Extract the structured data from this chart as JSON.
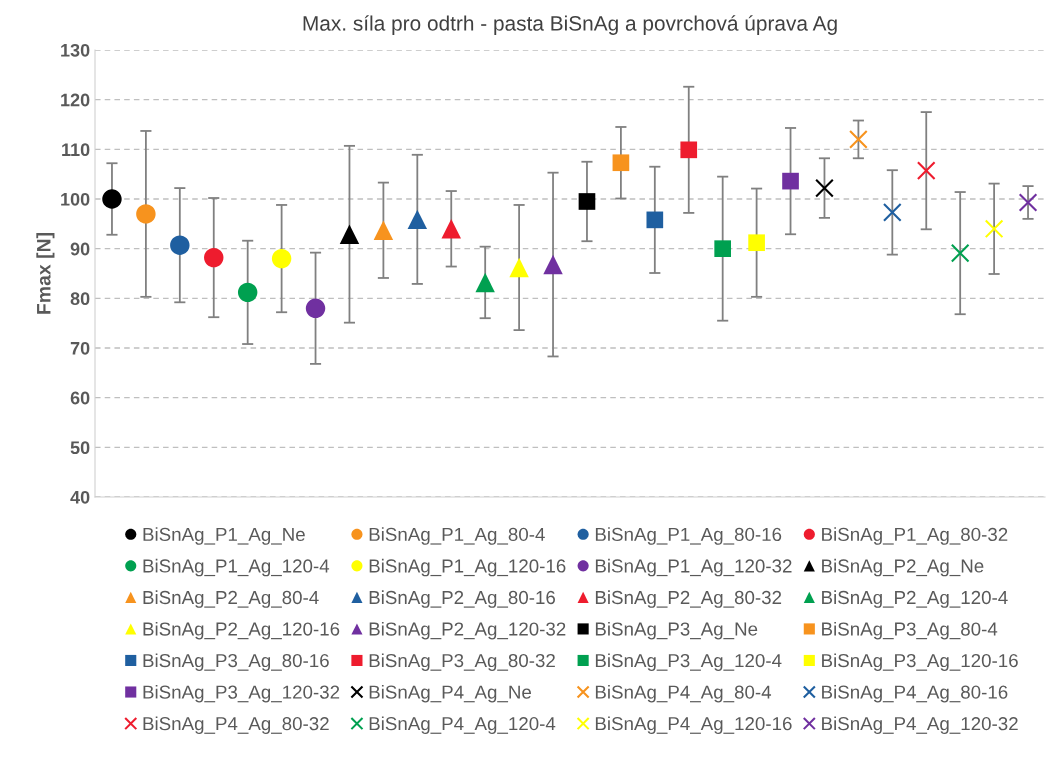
{
  "chart_data": {
    "type": "scatter",
    "title": "Max. síla pro odtrh - pasta BiSnAg a povrchová úprava Ag",
    "ylabel": "Fmax [N]",
    "categories": [
      null,
      null,
      null,
      null,
      null,
      null,
      null,
      null,
      null,
      null,
      null,
      null,
      null,
      null,
      null,
      null,
      null,
      null,
      null,
      null,
      null,
      null,
      null,
      null,
      null,
      null,
      null,
      null
    ],
    "ylim": [
      40,
      130
    ],
    "yticks": [
      40,
      50,
      60,
      70,
      80,
      90,
      100,
      110,
      120,
      130
    ],
    "grid": "y",
    "legend": "bottom",
    "series": [
      {
        "name": "BiSnAg_P1_Ag_Ne",
        "color": "#000000",
        "marker": "circle",
        "values": [
          100.0,
          null,
          null,
          null,
          null,
          null,
          null,
          null,
          null,
          null,
          null,
          null,
          null,
          null,
          null,
          null,
          null,
          null,
          null,
          null,
          null,
          null,
          null,
          null,
          null,
          null,
          null,
          null
        ],
        "errors": [
          7.2,
          null,
          null,
          null,
          null,
          null,
          null,
          null,
          null,
          null,
          null,
          null,
          null,
          null,
          null,
          null,
          null,
          null,
          null,
          null,
          null,
          null,
          null,
          null,
          null,
          null,
          null,
          null
        ]
      },
      {
        "name": "BiSnAg_P1_Ag_80-4",
        "color": "#f7931e",
        "marker": "circle",
        "values": [
          null,
          97.0,
          null,
          null,
          null,
          null,
          null,
          null,
          null,
          null,
          null,
          null,
          null,
          null,
          null,
          null,
          null,
          null,
          null,
          null,
          null,
          null,
          null,
          null,
          null,
          null,
          null,
          null
        ],
        "errors": [
          null,
          16.7,
          null,
          null,
          null,
          null,
          null,
          null,
          null,
          null,
          null,
          null,
          null,
          null,
          null,
          null,
          null,
          null,
          null,
          null,
          null,
          null,
          null,
          null,
          null,
          null,
          null,
          null
        ]
      },
      {
        "name": "BiSnAg_P1_Ag_80-16",
        "color": "#1f5fa0",
        "marker": "circle",
        "values": [
          null,
          null,
          90.7,
          null,
          null,
          null,
          null,
          null,
          null,
          null,
          null,
          null,
          null,
          null,
          null,
          null,
          null,
          null,
          null,
          null,
          null,
          null,
          null,
          null,
          null,
          null,
          null,
          null
        ],
        "errors": [
          null,
          null,
          11.5,
          null,
          null,
          null,
          null,
          null,
          null,
          null,
          null,
          null,
          null,
          null,
          null,
          null,
          null,
          null,
          null,
          null,
          null,
          null,
          null,
          null,
          null,
          null,
          null,
          null
        ]
      },
      {
        "name": "BiSnAg_P1_Ag_80-32",
        "color": "#ee1c2e",
        "marker": "circle",
        "values": [
          null,
          null,
          null,
          88.2,
          null,
          null,
          null,
          null,
          null,
          null,
          null,
          null,
          null,
          null,
          null,
          null,
          null,
          null,
          null,
          null,
          null,
          null,
          null,
          null,
          null,
          null,
          null,
          null
        ],
        "errors": [
          null,
          null,
          null,
          12.0,
          null,
          null,
          null,
          null,
          null,
          null,
          null,
          null,
          null,
          null,
          null,
          null,
          null,
          null,
          null,
          null,
          null,
          null,
          null,
          null,
          null,
          null,
          null,
          null
        ]
      },
      {
        "name": "BiSnAg_P1_Ag_120-4",
        "color": "#00a050",
        "marker": "circle",
        "values": [
          null,
          null,
          null,
          null,
          81.2,
          null,
          null,
          null,
          null,
          null,
          null,
          null,
          null,
          null,
          null,
          null,
          null,
          null,
          null,
          null,
          null,
          null,
          null,
          null,
          null,
          null,
          null,
          null
        ],
        "errors": [
          null,
          null,
          null,
          null,
          10.4,
          null,
          null,
          null,
          null,
          null,
          null,
          null,
          null,
          null,
          null,
          null,
          null,
          null,
          null,
          null,
          null,
          null,
          null,
          null,
          null,
          null,
          null,
          null
        ]
      },
      {
        "name": "BiSnAg_P1_Ag_120-16",
        "color": "#ffff00",
        "marker": "circle",
        "values": [
          null,
          null,
          null,
          null,
          null,
          88.0,
          null,
          null,
          null,
          null,
          null,
          null,
          null,
          null,
          null,
          null,
          null,
          null,
          null,
          null,
          null,
          null,
          null,
          null,
          null,
          null,
          null,
          null
        ],
        "errors": [
          null,
          null,
          null,
          null,
          null,
          10.8,
          null,
          null,
          null,
          null,
          null,
          null,
          null,
          null,
          null,
          null,
          null,
          null,
          null,
          null,
          null,
          null,
          null,
          null,
          null,
          null,
          null,
          null
        ]
      },
      {
        "name": "BiSnAg_P1_Ag_120-32",
        "color": "#7030a0",
        "marker": "circle",
        "values": [
          null,
          null,
          null,
          null,
          null,
          null,
          78.0,
          null,
          null,
          null,
          null,
          null,
          null,
          null,
          null,
          null,
          null,
          null,
          null,
          null,
          null,
          null,
          null,
          null,
          null,
          null,
          null,
          null
        ],
        "errors": [
          null,
          null,
          null,
          null,
          null,
          null,
          11.2,
          null,
          null,
          null,
          null,
          null,
          null,
          null,
          null,
          null,
          null,
          null,
          null,
          null,
          null,
          null,
          null,
          null,
          null,
          null,
          null,
          null
        ]
      },
      {
        "name": "BiSnAg_P2_Ag_Ne",
        "color": "#000000",
        "marker": "triangle",
        "values": [
          null,
          null,
          null,
          null,
          null,
          null,
          null,
          92.9,
          null,
          null,
          null,
          null,
          null,
          null,
          null,
          null,
          null,
          null,
          null,
          null,
          null,
          null,
          null,
          null,
          null,
          null,
          null,
          null
        ],
        "errors": [
          null,
          null,
          null,
          null,
          null,
          null,
          null,
          17.8,
          null,
          null,
          null,
          null,
          null,
          null,
          null,
          null,
          null,
          null,
          null,
          null,
          null,
          null,
          null,
          null,
          null,
          null,
          null,
          null
        ]
      },
      {
        "name": "BiSnAg_P2_Ag_80-4",
        "color": "#f7931e",
        "marker": "triangle",
        "values": [
          null,
          null,
          null,
          null,
          null,
          null,
          null,
          null,
          93.7,
          null,
          null,
          null,
          null,
          null,
          null,
          null,
          null,
          null,
          null,
          null,
          null,
          null,
          null,
          null,
          null,
          null,
          null,
          null
        ],
        "errors": [
          null,
          null,
          null,
          null,
          null,
          null,
          null,
          null,
          9.6,
          null,
          null,
          null,
          null,
          null,
          null,
          null,
          null,
          null,
          null,
          null,
          null,
          null,
          null,
          null,
          null,
          null,
          null,
          null
        ]
      },
      {
        "name": "BiSnAg_P2_Ag_80-16",
        "color": "#1f5fa0",
        "marker": "triangle",
        "values": [
          null,
          null,
          null,
          null,
          null,
          null,
          null,
          null,
          null,
          95.9,
          null,
          null,
          null,
          null,
          null,
          null,
          null,
          null,
          null,
          null,
          null,
          null,
          null,
          null,
          null,
          null,
          null,
          null
        ],
        "errors": [
          null,
          null,
          null,
          null,
          null,
          null,
          null,
          null,
          null,
          13.0,
          null,
          null,
          null,
          null,
          null,
          null,
          null,
          null,
          null,
          null,
          null,
          null,
          null,
          null,
          null,
          null,
          null,
          null
        ]
      },
      {
        "name": "BiSnAg_P2_Ag_80-32",
        "color": "#ee1c2e",
        "marker": "triangle",
        "values": [
          null,
          null,
          null,
          null,
          null,
          null,
          null,
          null,
          null,
          null,
          94.0,
          null,
          null,
          null,
          null,
          null,
          null,
          null,
          null,
          null,
          null,
          null,
          null,
          null,
          null,
          null,
          null,
          null
        ],
        "errors": [
          null,
          null,
          null,
          null,
          null,
          null,
          null,
          null,
          null,
          null,
          7.6,
          null,
          null,
          null,
          null,
          null,
          null,
          null,
          null,
          null,
          null,
          null,
          null,
          null,
          null,
          null,
          null,
          null
        ]
      },
      {
        "name": "BiSnAg_P2_Ag_120-4",
        "color": "#00a050",
        "marker": "triangle",
        "values": [
          null,
          null,
          null,
          null,
          null,
          null,
          null,
          null,
          null,
          null,
          null,
          83.2,
          null,
          null,
          null,
          null,
          null,
          null,
          null,
          null,
          null,
          null,
          null,
          null,
          null,
          null,
          null,
          null
        ],
        "errors": [
          null,
          null,
          null,
          null,
          null,
          null,
          null,
          null,
          null,
          null,
          null,
          7.2,
          null,
          null,
          null,
          null,
          null,
          null,
          null,
          null,
          null,
          null,
          null,
          null,
          null,
          null,
          null,
          null
        ]
      },
      {
        "name": "BiSnAg_P2_Ag_120-16",
        "color": "#ffff00",
        "marker": "triangle",
        "values": [
          null,
          null,
          null,
          null,
          null,
          null,
          null,
          null,
          null,
          null,
          null,
          null,
          86.2,
          null,
          null,
          null,
          null,
          null,
          null,
          null,
          null,
          null,
          null,
          null,
          null,
          null,
          null,
          null
        ],
        "errors": [
          null,
          null,
          null,
          null,
          null,
          null,
          null,
          null,
          null,
          null,
          null,
          null,
          12.6,
          null,
          null,
          null,
          null,
          null,
          null,
          null,
          null,
          null,
          null,
          null,
          null,
          null,
          null,
          null
        ]
      },
      {
        "name": "BiSnAg_P2_Ag_120-32",
        "color": "#7030a0",
        "marker": "triangle",
        "values": [
          null,
          null,
          null,
          null,
          null,
          null,
          null,
          null,
          null,
          null,
          null,
          null,
          null,
          86.8,
          null,
          null,
          null,
          null,
          null,
          null,
          null,
          null,
          null,
          null,
          null,
          null,
          null,
          null
        ],
        "errors": [
          null,
          null,
          null,
          null,
          null,
          null,
          null,
          null,
          null,
          null,
          null,
          null,
          null,
          18.5,
          null,
          null,
          null,
          null,
          null,
          null,
          null,
          null,
          null,
          null,
          null,
          null,
          null,
          null
        ]
      },
      {
        "name": "BiSnAg_P3_Ag_Ne",
        "color": "#000000",
        "marker": "square",
        "values": [
          null,
          null,
          null,
          null,
          null,
          null,
          null,
          null,
          null,
          null,
          null,
          null,
          null,
          null,
          99.5,
          null,
          null,
          null,
          null,
          null,
          null,
          null,
          null,
          null,
          null,
          null,
          null,
          null
        ],
        "errors": [
          null,
          null,
          null,
          null,
          null,
          null,
          null,
          null,
          null,
          null,
          null,
          null,
          null,
          null,
          8.0,
          null,
          null,
          null,
          null,
          null,
          null,
          null,
          null,
          null,
          null,
          null,
          null,
          null
        ]
      },
      {
        "name": "BiSnAg_P3_Ag_80-4",
        "color": "#f7931e",
        "marker": "square",
        "values": [
          null,
          null,
          null,
          null,
          null,
          null,
          null,
          null,
          null,
          null,
          null,
          null,
          null,
          null,
          null,
          107.3,
          null,
          null,
          null,
          null,
          null,
          null,
          null,
          null,
          null,
          null,
          null,
          null
        ],
        "errors": [
          null,
          null,
          null,
          null,
          null,
          null,
          null,
          null,
          null,
          null,
          null,
          null,
          null,
          null,
          null,
          7.2,
          null,
          null,
          null,
          null,
          null,
          null,
          null,
          null,
          null,
          null,
          null,
          null
        ]
      },
      {
        "name": "BiSnAg_P3_Ag_80-16",
        "color": "#1f5fa0",
        "marker": "square",
        "values": [
          null,
          null,
          null,
          null,
          null,
          null,
          null,
          null,
          null,
          null,
          null,
          null,
          null,
          null,
          null,
          null,
          95.8,
          null,
          null,
          null,
          null,
          null,
          null,
          null,
          null,
          null,
          null,
          null
        ],
        "errors": [
          null,
          null,
          null,
          null,
          null,
          null,
          null,
          null,
          null,
          null,
          null,
          null,
          null,
          null,
          null,
          null,
          10.7,
          null,
          null,
          null,
          null,
          null,
          null,
          null,
          null,
          null,
          null,
          null
        ]
      },
      {
        "name": "BiSnAg_P3_Ag_80-32",
        "color": "#ee1c2e",
        "marker": "square",
        "values": [
          null,
          null,
          null,
          null,
          null,
          null,
          null,
          null,
          null,
          null,
          null,
          null,
          null,
          null,
          null,
          null,
          null,
          109.9,
          null,
          null,
          null,
          null,
          null,
          null,
          null,
          null,
          null,
          null
        ],
        "errors": [
          null,
          null,
          null,
          null,
          null,
          null,
          null,
          null,
          null,
          null,
          null,
          null,
          null,
          null,
          null,
          null,
          null,
          12.7,
          null,
          null,
          null,
          null,
          null,
          null,
          null,
          null,
          null,
          null
        ]
      },
      {
        "name": "BiSnAg_P3_Ag_120-4",
        "color": "#00a050",
        "marker": "square",
        "values": [
          null,
          null,
          null,
          null,
          null,
          null,
          null,
          null,
          null,
          null,
          null,
          null,
          null,
          null,
          null,
          null,
          null,
          null,
          90.0,
          null,
          null,
          null,
          null,
          null,
          null,
          null,
          null,
          null
        ],
        "errors": [
          null,
          null,
          null,
          null,
          null,
          null,
          null,
          null,
          null,
          null,
          null,
          null,
          null,
          null,
          null,
          null,
          null,
          null,
          14.5,
          null,
          null,
          null,
          null,
          null,
          null,
          null,
          null,
          null
        ]
      },
      {
        "name": "BiSnAg_P3_Ag_120-16",
        "color": "#ffff00",
        "marker": "square",
        "values": [
          null,
          null,
          null,
          null,
          null,
          null,
          null,
          null,
          null,
          null,
          null,
          null,
          null,
          null,
          null,
          null,
          null,
          null,
          null,
          91.2,
          null,
          null,
          null,
          null,
          null,
          null,
          null,
          null
        ],
        "errors": [
          null,
          null,
          null,
          null,
          null,
          null,
          null,
          null,
          null,
          null,
          null,
          null,
          null,
          null,
          null,
          null,
          null,
          null,
          null,
          10.9,
          null,
          null,
          null,
          null,
          null,
          null,
          null,
          null
        ]
      },
      {
        "name": "BiSnAg_P3_Ag_120-32",
        "color": "#7030a0",
        "marker": "square",
        "values": [
          null,
          null,
          null,
          null,
          null,
          null,
          null,
          null,
          null,
          null,
          null,
          null,
          null,
          null,
          null,
          null,
          null,
          null,
          null,
          null,
          103.6,
          null,
          null,
          null,
          null,
          null,
          null,
          null
        ],
        "errors": [
          null,
          null,
          null,
          null,
          null,
          null,
          null,
          null,
          null,
          null,
          null,
          null,
          null,
          null,
          null,
          null,
          null,
          null,
          null,
          null,
          10.7,
          null,
          null,
          null,
          null,
          null,
          null,
          null
        ]
      },
      {
        "name": "BiSnAg_P4_Ag_Ne",
        "color": "#000000",
        "marker": "cross",
        "values": [
          null,
          null,
          null,
          null,
          null,
          null,
          null,
          null,
          null,
          null,
          null,
          null,
          null,
          null,
          null,
          null,
          null,
          null,
          null,
          null,
          null,
          102.2,
          null,
          null,
          null,
          null,
          null,
          null
        ],
        "errors": [
          null,
          null,
          null,
          null,
          null,
          null,
          null,
          null,
          null,
          null,
          null,
          null,
          null,
          null,
          null,
          null,
          null,
          null,
          null,
          null,
          null,
          6.0,
          null,
          null,
          null,
          null,
          null,
          null
        ]
      },
      {
        "name": "BiSnAg_P4_Ag_80-4",
        "color": "#f7931e",
        "marker": "cross",
        "values": [
          null,
          null,
          null,
          null,
          null,
          null,
          null,
          null,
          null,
          null,
          null,
          null,
          null,
          null,
          null,
          null,
          null,
          null,
          null,
          null,
          null,
          null,
          112.0,
          null,
          null,
          null,
          null,
          null
        ],
        "errors": [
          null,
          null,
          null,
          null,
          null,
          null,
          null,
          null,
          null,
          null,
          null,
          null,
          null,
          null,
          null,
          null,
          null,
          null,
          null,
          null,
          null,
          null,
          3.8,
          null,
          null,
          null,
          null,
          null
        ]
      },
      {
        "name": "BiSnAg_P4_Ag_80-16",
        "color": "#1f5fa0",
        "marker": "cross",
        "values": [
          null,
          null,
          null,
          null,
          null,
          null,
          null,
          null,
          null,
          null,
          null,
          null,
          null,
          null,
          null,
          null,
          null,
          null,
          null,
          null,
          null,
          null,
          null,
          97.3,
          null,
          null,
          null,
          null
        ],
        "errors": [
          null,
          null,
          null,
          null,
          null,
          null,
          null,
          null,
          null,
          null,
          null,
          null,
          null,
          null,
          null,
          null,
          null,
          null,
          null,
          null,
          null,
          null,
          null,
          8.5,
          null,
          null,
          null,
          null
        ]
      },
      {
        "name": "BiSnAg_P4_Ag_80-32",
        "color": "#ee1c2e",
        "marker": "cross",
        "values": [
          null,
          null,
          null,
          null,
          null,
          null,
          null,
          null,
          null,
          null,
          null,
          null,
          null,
          null,
          null,
          null,
          null,
          null,
          null,
          null,
          null,
          null,
          null,
          null,
          105.7,
          null,
          null,
          null
        ],
        "errors": [
          null,
          null,
          null,
          null,
          null,
          null,
          null,
          null,
          null,
          null,
          null,
          null,
          null,
          null,
          null,
          null,
          null,
          null,
          null,
          null,
          null,
          null,
          null,
          null,
          11.8,
          null,
          null,
          null
        ]
      },
      {
        "name": "BiSnAg_P4_Ag_120-4",
        "color": "#00a050",
        "marker": "cross",
        "values": [
          null,
          null,
          null,
          null,
          null,
          null,
          null,
          null,
          null,
          null,
          null,
          null,
          null,
          null,
          null,
          null,
          null,
          null,
          null,
          null,
          null,
          null,
          null,
          null,
          null,
          89.1,
          null,
          null
        ],
        "errors": [
          null,
          null,
          null,
          null,
          null,
          null,
          null,
          null,
          null,
          null,
          null,
          null,
          null,
          null,
          null,
          null,
          null,
          null,
          null,
          null,
          null,
          null,
          null,
          null,
          null,
          12.3,
          null,
          null
        ]
      },
      {
        "name": "BiSnAg_P4_Ag_120-16",
        "color": "#ffff00",
        "marker": "cross",
        "values": [
          null,
          null,
          null,
          null,
          null,
          null,
          null,
          null,
          null,
          null,
          null,
          null,
          null,
          null,
          null,
          null,
          null,
          null,
          null,
          null,
          null,
          null,
          null,
          null,
          null,
          null,
          94.0,
          null
        ],
        "errors": [
          null,
          null,
          null,
          null,
          null,
          null,
          null,
          null,
          null,
          null,
          null,
          null,
          null,
          null,
          null,
          null,
          null,
          null,
          null,
          null,
          null,
          null,
          null,
          null,
          null,
          null,
          9.1,
          null
        ]
      },
      {
        "name": "BiSnAg_P4_Ag_120-32",
        "color": "#7030a0",
        "marker": "cross",
        "values": [
          null,
          null,
          null,
          null,
          null,
          null,
          null,
          null,
          null,
          null,
          null,
          null,
          null,
          null,
          null,
          null,
          null,
          null,
          null,
          null,
          null,
          null,
          null,
          null,
          null,
          null,
          null,
          99.3
        ],
        "errors": [
          null,
          null,
          null,
          null,
          null,
          null,
          null,
          null,
          null,
          null,
          null,
          null,
          null,
          null,
          null,
          null,
          null,
          null,
          null,
          null,
          null,
          null,
          null,
          null,
          null,
          null,
          null,
          3.3
        ]
      }
    ]
  }
}
